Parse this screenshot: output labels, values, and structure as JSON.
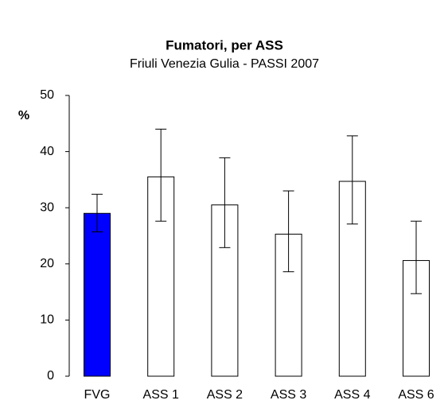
{
  "chart_data": {
    "type": "bar",
    "title": "Fumatori, per ASS",
    "subtitle": "Friuli Venezia Gulia - PASSI 2007",
    "ylabel": "%",
    "categories": [
      "FVG",
      "ASS 1",
      "ASS 2",
      "ASS 3",
      "ASS 4",
      "ASS 6"
    ],
    "values": [
      29,
      35.5,
      30.5,
      25.3,
      34.7,
      20.6
    ],
    "lower": [
      25.7,
      27.6,
      22.9,
      18.6,
      27.1,
      14.7
    ],
    "upper": [
      32.4,
      44,
      38.9,
      33,
      42.8,
      27.6
    ],
    "colors": [
      "#0000ff",
      "#ffffff",
      "#ffffff",
      "#ffffff",
      "#ffffff",
      "#ffffff"
    ],
    "ylim": [
      0,
      50
    ],
    "yticks": [
      0,
      10,
      20,
      30,
      40,
      50
    ],
    "grid": false
  }
}
